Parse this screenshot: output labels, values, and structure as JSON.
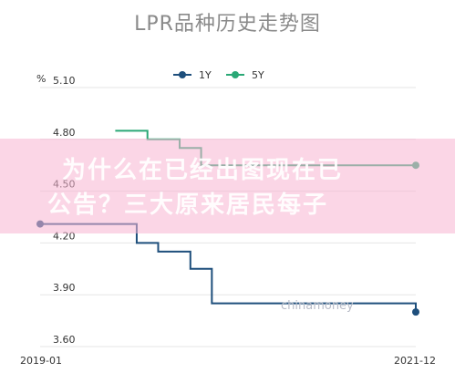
{
  "chart_data": {
    "type": "line",
    "title": "LPR品种历史走势图",
    "unit": "%",
    "x_start_label": "2019-01",
    "x_end_label": "2021-12",
    "y_ticks": [
      "5.10",
      "4.80",
      "4.50",
      "4.20",
      "3.90",
      "3.60"
    ],
    "ylim": [
      3.6,
      5.1
    ],
    "grid": true,
    "legend_position": "top-center",
    "series": [
      {
        "name": "1Y",
        "color": "#1e4f7c",
        "marker_end": true,
        "points": [
          {
            "x": "2019-01",
            "y": 4.31
          },
          {
            "x": "2019-09",
            "y": 4.31
          },
          {
            "x": "2019-10",
            "y": 4.2
          },
          {
            "x": "2019-11",
            "y": 4.2
          },
          {
            "x": "2019-12",
            "y": 4.15
          },
          {
            "x": "2020-02",
            "y": 4.15
          },
          {
            "x": "2020-03",
            "y": 4.05
          },
          {
            "x": "2020-04",
            "y": 4.05
          },
          {
            "x": "2020-05",
            "y": 3.85
          },
          {
            "x": "2021-12",
            "y": 3.85
          },
          {
            "x": "2021-12",
            "y": 3.8
          }
        ]
      },
      {
        "name": "5Y",
        "color": "#2aa876",
        "marker_end": true,
        "points": [
          {
            "x": "2019-08",
            "y": 4.85
          },
          {
            "x": "2019-10",
            "y": 4.85
          },
          {
            "x": "2019-11",
            "y": 4.8
          },
          {
            "x": "2020-01",
            "y": 4.8
          },
          {
            "x": "2020-02",
            "y": 4.75
          },
          {
            "x": "2020-03",
            "y": 4.75
          },
          {
            "x": "2020-04",
            "y": 4.65
          },
          {
            "x": "2021-12",
            "y": 4.65
          }
        ]
      }
    ]
  },
  "overlay": {
    "line1": "为什么在已经出图现在已",
    "line2": "公告？三大原来居民每子"
  },
  "source_watermark": "chinamoney"
}
